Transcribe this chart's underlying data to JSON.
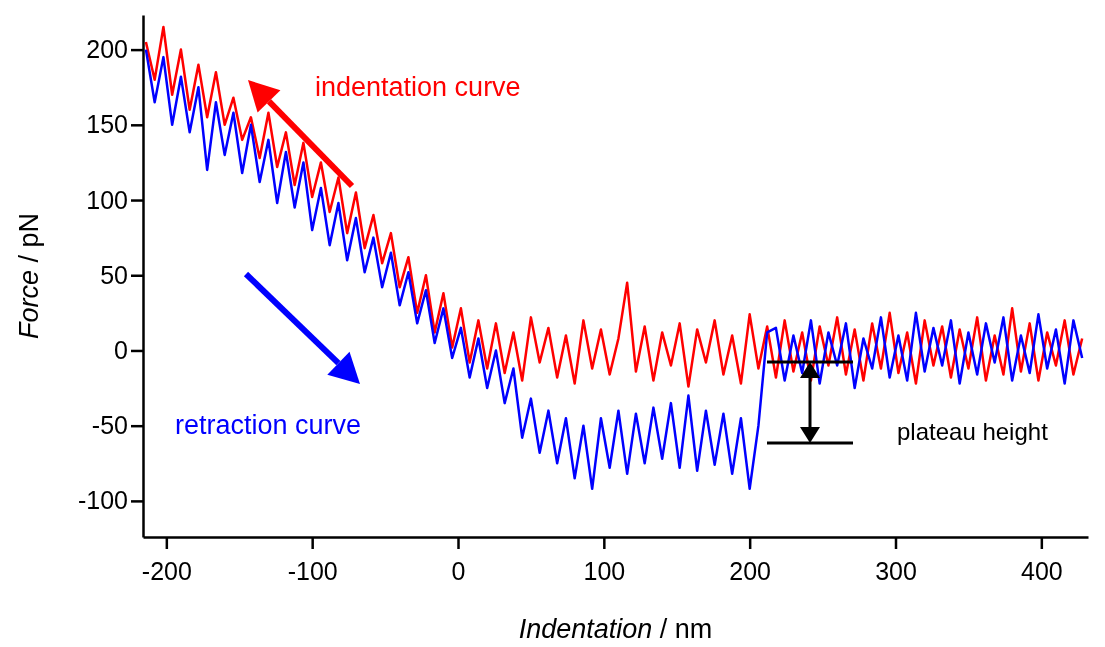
{
  "chart_data": {
    "type": "line",
    "xlabel": "Indentation / nm",
    "ylabel": "Force / pN",
    "xlim": [
      -216,
      432
    ],
    "ylim": [
      -124,
      223
    ],
    "xticks": [
      -200,
      -100,
      0,
      100,
      200,
      300,
      400
    ],
    "yticks": [
      -100,
      -50,
      0,
      50,
      100,
      150,
      200
    ],
    "grid": false,
    "legend": "top",
    "marker": "none",
    "line_style": "solid",
    "x": [
      -214,
      -208,
      -202,
      -196,
      -190,
      -184,
      -178,
      -172,
      -166,
      -160,
      -154,
      -148,
      -142,
      -136,
      -130,
      -124,
      -118,
      -112,
      -106,
      -100,
      -94,
      -88,
      -82,
      -76,
      -70,
      -64,
      -58,
      -52,
      -46,
      -40,
      -34,
      -28,
      -22,
      -16,
      -10,
      -4,
      2,
      8,
      14,
      20,
      26,
      32,
      38,
      44,
      50,
      56,
      62,
      68,
      74,
      80,
      86,
      92,
      98,
      104,
      110,
      116,
      122,
      128,
      134,
      140,
      146,
      152,
      158,
      164,
      170,
      176,
      182,
      188,
      194,
      200,
      206,
      212,
      218,
      224,
      230,
      236,
      242,
      248,
      254,
      260,
      266,
      272,
      278,
      284,
      290,
      296,
      302,
      308,
      314,
      320,
      326,
      332,
      338,
      344,
      350,
      356,
      362,
      368,
      374,
      380,
      386,
      392,
      398,
      404,
      410,
      416,
      422,
      428
    ],
    "series": [
      {
        "name": "indentation curve",
        "color": "#ff0000",
        "values": [
          205,
          180,
          215,
          170,
          200,
          160,
          190,
          155,
          185,
          150,
          168,
          140,
          155,
          128,
          158,
          122,
          145,
          110,
          138,
          102,
          125,
          92,
          115,
          78,
          105,
          68,
          90,
          58,
          78,
          42,
          62,
          25,
          50,
          12,
          38,
          2,
          28,
          -8,
          20,
          -12,
          18,
          -15,
          12,
          -20,
          22,
          -8,
          15,
          -18,
          10,
          -22,
          20,
          -12,
          14,
          -16,
          8,
          45,
          -14,
          16,
          -20,
          12,
          -10,
          18,
          -24,
          14,
          -8,
          20,
          -16,
          10,
          -22,
          24,
          -12,
          16,
          -18,
          20,
          -14,
          12,
          -20,
          16,
          -10,
          22,
          -16,
          14,
          -20,
          18,
          -12,
          25,
          -15,
          12,
          -22,
          20,
          -10,
          16,
          -18,
          14,
          -12,
          22,
          -20,
          10,
          -16,
          28,
          -14,
          18,
          -20,
          12,
          -10,
          20,
          -16,
          8
        ]
      },
      {
        "name": "retraction curve",
        "color": "#0000ff",
        "values": [
          200,
          165,
          195,
          150,
          182,
          145,
          175,
          120,
          165,
          130,
          158,
          118,
          150,
          112,
          140,
          98,
          132,
          95,
          125,
          80,
          108,
          70,
          98,
          60,
          88,
          52,
          75,
          42,
          65,
          30,
          52,
          18,
          40,
          5,
          28,
          -5,
          15,
          -18,
          8,
          -25,
          0,
          -35,
          -12,
          -58,
          -32,
          -68,
          -40,
          -75,
          -45,
          -85,
          -50,
          -92,
          -45,
          -78,
          -40,
          -82,
          -42,
          -75,
          -38,
          -72,
          -35,
          -78,
          -30,
          -80,
          -40,
          -76,
          -42,
          -82,
          -45,
          -92,
          -50,
          12,
          15,
          -20,
          10,
          -15,
          20,
          -22,
          12,
          -10,
          18,
          -25,
          8,
          -12,
          22,
          -18,
          10,
          -20,
          25,
          -14,
          15,
          -10,
          20,
          -22,
          12,
          -16,
          18,
          -8,
          22,
          -20,
          10,
          -15,
          24,
          -12,
          14,
          -22,
          20,
          -5
        ]
      }
    ],
    "annotations": [
      "plateau height"
    ]
  }
}
